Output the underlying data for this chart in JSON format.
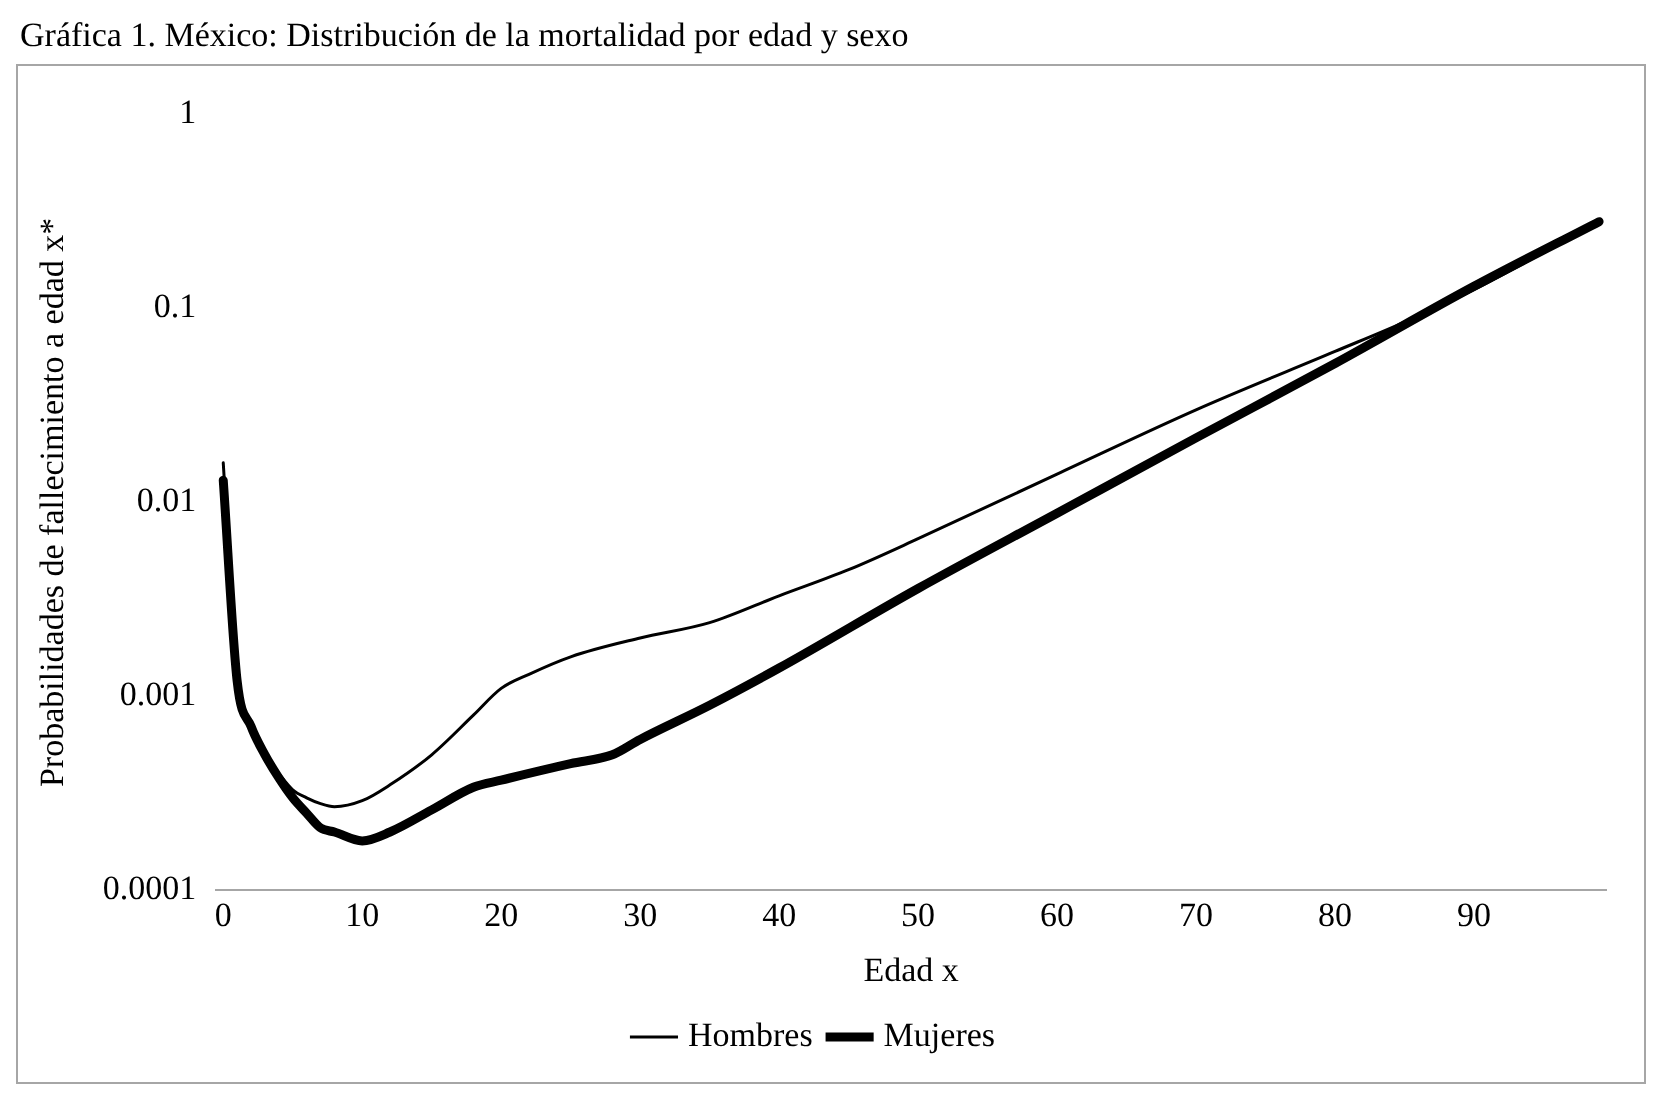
{
  "chart_data": {
    "type": "line",
    "title": "Gráfica 1. México: Distribución de la mortalidad por edad y sexo",
    "xlabel": "Edad x",
    "ylabel": "Probabilidades de fallecimiento a edad x*",
    "log": "y",
    "grid": false,
    "legend": "bottom",
    "marker": "none",
    "line_style": "solid",
    "xlim": [
      -0.5,
      99.5
    ],
    "xticks": [
      0,
      10,
      20,
      30,
      40,
      50,
      60,
      70,
      80,
      90
    ],
    "ylim": [
      0.0001,
      1
    ],
    "yticks": [
      0.0001,
      0.001,
      0.01,
      0.1,
      1
    ],
    "series": [
      {
        "name": "Hombres",
        "color": "#000000",
        "x": [
          0,
          1,
          2,
          3,
          4,
          5,
          6,
          7,
          8,
          10,
          12,
          15,
          18,
          20,
          22,
          25,
          30,
          35,
          40,
          45,
          50,
          60,
          70,
          80,
          85,
          90,
          99
        ],
        "values": [
          0.016,
          0.0012,
          0.0007,
          0.0005,
          0.0004,
          0.00033,
          0.0003,
          0.00028,
          0.00027,
          0.00029,
          0.00035,
          0.0005,
          0.0008,
          0.0011,
          0.0013,
          0.0016,
          0.002,
          0.0024,
          0.0033,
          0.0045,
          0.0065,
          0.014,
          0.03,
          0.06,
          0.085,
          0.125,
          0.28
        ]
      },
      {
        "name": "Mujeres",
        "color": "#000000",
        "x": [
          0,
          1,
          2,
          3,
          4,
          5,
          6,
          7,
          8,
          10,
          12,
          15,
          18,
          20,
          25,
          28,
          30,
          35,
          40,
          50,
          60,
          70,
          80,
          90,
          99
        ],
        "values": [
          0.013,
          0.0012,
          0.0007,
          0.0005,
          0.00038,
          0.0003,
          0.00025,
          0.00021,
          0.0002,
          0.00018,
          0.0002,
          0.00026,
          0.00034,
          0.00037,
          0.00045,
          0.0005,
          0.0006,
          0.0009,
          0.0014,
          0.0036,
          0.0088,
          0.0215,
          0.052,
          0.13,
          0.28
        ]
      }
    ]
  }
}
